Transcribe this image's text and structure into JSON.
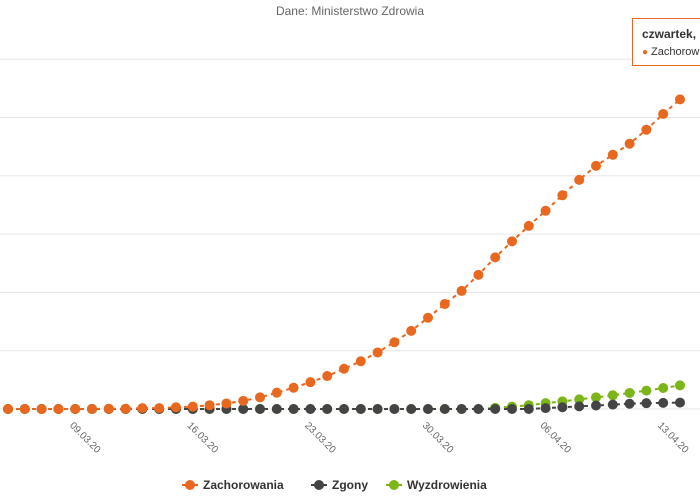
{
  "chart_data": {
    "type": "line",
    "subtitle": "Dane: Ministerstwo Zdrowia",
    "x_tick_labels": [
      "09.03.20",
      "16.03.20",
      "23.03.20",
      "30.03.20",
      "06.04.20",
      "13.04.20"
    ],
    "series": [
      {
        "name": "Zachorowania",
        "color": "#e8681f",
        "values": [
          0,
          0,
          0,
          0,
          0,
          0,
          1,
          1,
          3,
          3,
          6,
          8,
          13,
          19,
          28,
          40,
          56,
          73,
          92,
          113,
          138,
          164,
          194,
          229,
          268,
          313,
          360,
          405,
          460,
          520,
          575,
          628,
          680,
          733,
          786,
          834,
          872,
          910,
          958,
          1012,
          1062
        ]
      },
      {
        "name": "Zgony",
        "color": "#444444",
        "values": [
          0,
          0,
          0,
          0,
          0,
          0,
          0,
          0,
          0,
          0,
          0,
          0,
          0,
          0,
          0,
          0,
          0,
          0,
          0,
          0,
          0,
          0,
          0,
          0,
          0,
          0,
          0,
          0,
          0,
          0,
          0,
          0,
          3,
          6,
          9,
          12,
          15,
          18,
          20,
          21,
          22
        ]
      },
      {
        "name": "Wyzdrowienia",
        "color": "#7cb518",
        "values": [
          0,
          0,
          0,
          0,
          0,
          0,
          0,
          0,
          0,
          0,
          0,
          0,
          0,
          0,
          0,
          0,
          0,
          0,
          0,
          0,
          0,
          0,
          0,
          0,
          0,
          0,
          0,
          0,
          0,
          4,
          8,
          13,
          20,
          26,
          33,
          40,
          47,
          55,
          63,
          72,
          81
        ]
      }
    ],
    "ylim": [
      0,
      1300
    ],
    "grid": true,
    "legend_position": "bottom-center"
  },
  "tooltip": {
    "title": "czwartek,",
    "series_label": "Zachorowania"
  }
}
